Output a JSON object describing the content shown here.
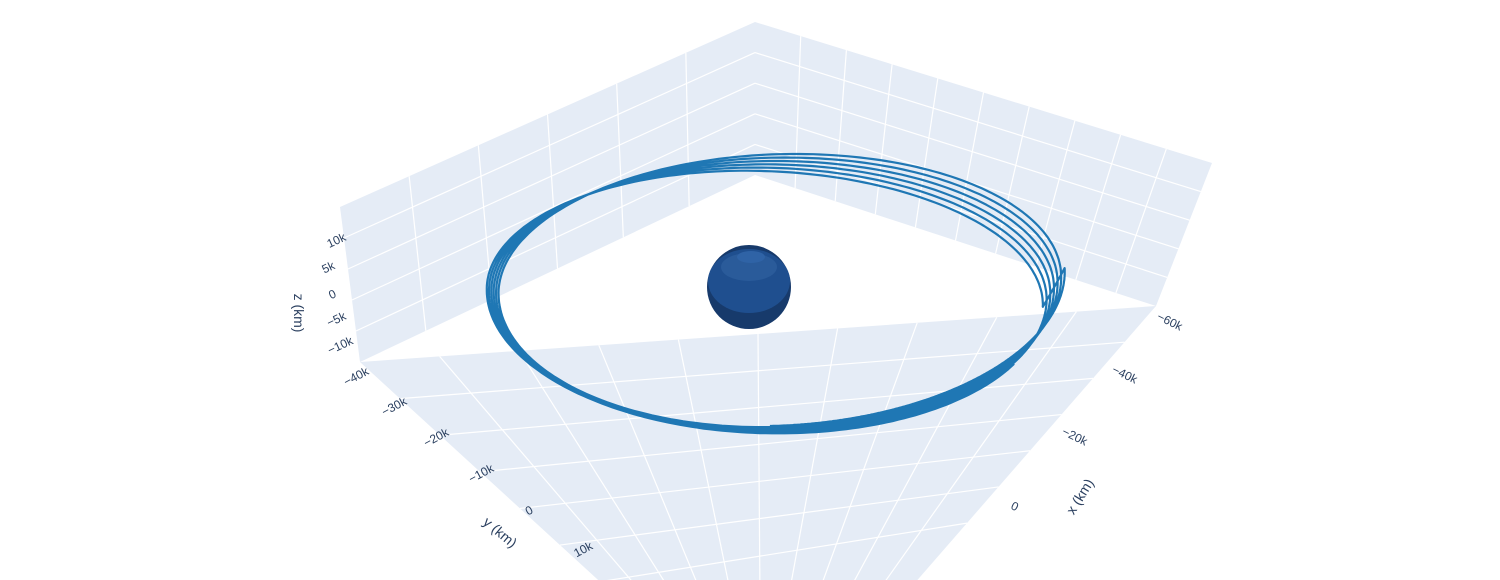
{
  "chart_data": {
    "type": "scatter3d",
    "colors": {
      "background": "#ffffff",
      "pane": "#e5ecf6",
      "grid": "#ffffff",
      "orbit": "#1f77b4",
      "earth": "#1f4f8f",
      "earth_shade": "#173a6b",
      "text": "#2a3f5f"
    },
    "axes": {
      "x": {
        "title": "x (km)",
        "ticks": [
          {
            "value": -60000,
            "label": "−60k"
          },
          {
            "value": -40000,
            "label": "−40k"
          },
          {
            "value": -20000,
            "label": "−20k"
          },
          {
            "value": 0,
            "label": "0"
          }
        ]
      },
      "y": {
        "title": "y (km)",
        "ticks": [
          {
            "value": -40000,
            "label": "−40k"
          },
          {
            "value": -30000,
            "label": "−30k"
          },
          {
            "value": -20000,
            "label": "−20k"
          },
          {
            "value": -10000,
            "label": "−10k"
          },
          {
            "value": 0,
            "label": "0"
          },
          {
            "value": 10000,
            "label": "10k"
          }
        ]
      },
      "z": {
        "title": "z (km)",
        "ticks": [
          {
            "value": 10000,
            "label": "10k"
          },
          {
            "value": 5000,
            "label": "5k"
          },
          {
            "value": 0,
            "label": "0"
          },
          {
            "value": -5000,
            "label": "−5k"
          },
          {
            "value": -10000,
            "label": "−10k"
          }
        ]
      }
    },
    "series": [
      {
        "kind": "orbit",
        "revolutions": 7,
        "apogee_km": 60000,
        "perigee_km": 7000,
        "z_amplitude_km": 10000
      },
      {
        "kind": "sphere",
        "radius_km": 6371,
        "center_km": [
          0,
          0,
          0
        ]
      }
    ]
  }
}
